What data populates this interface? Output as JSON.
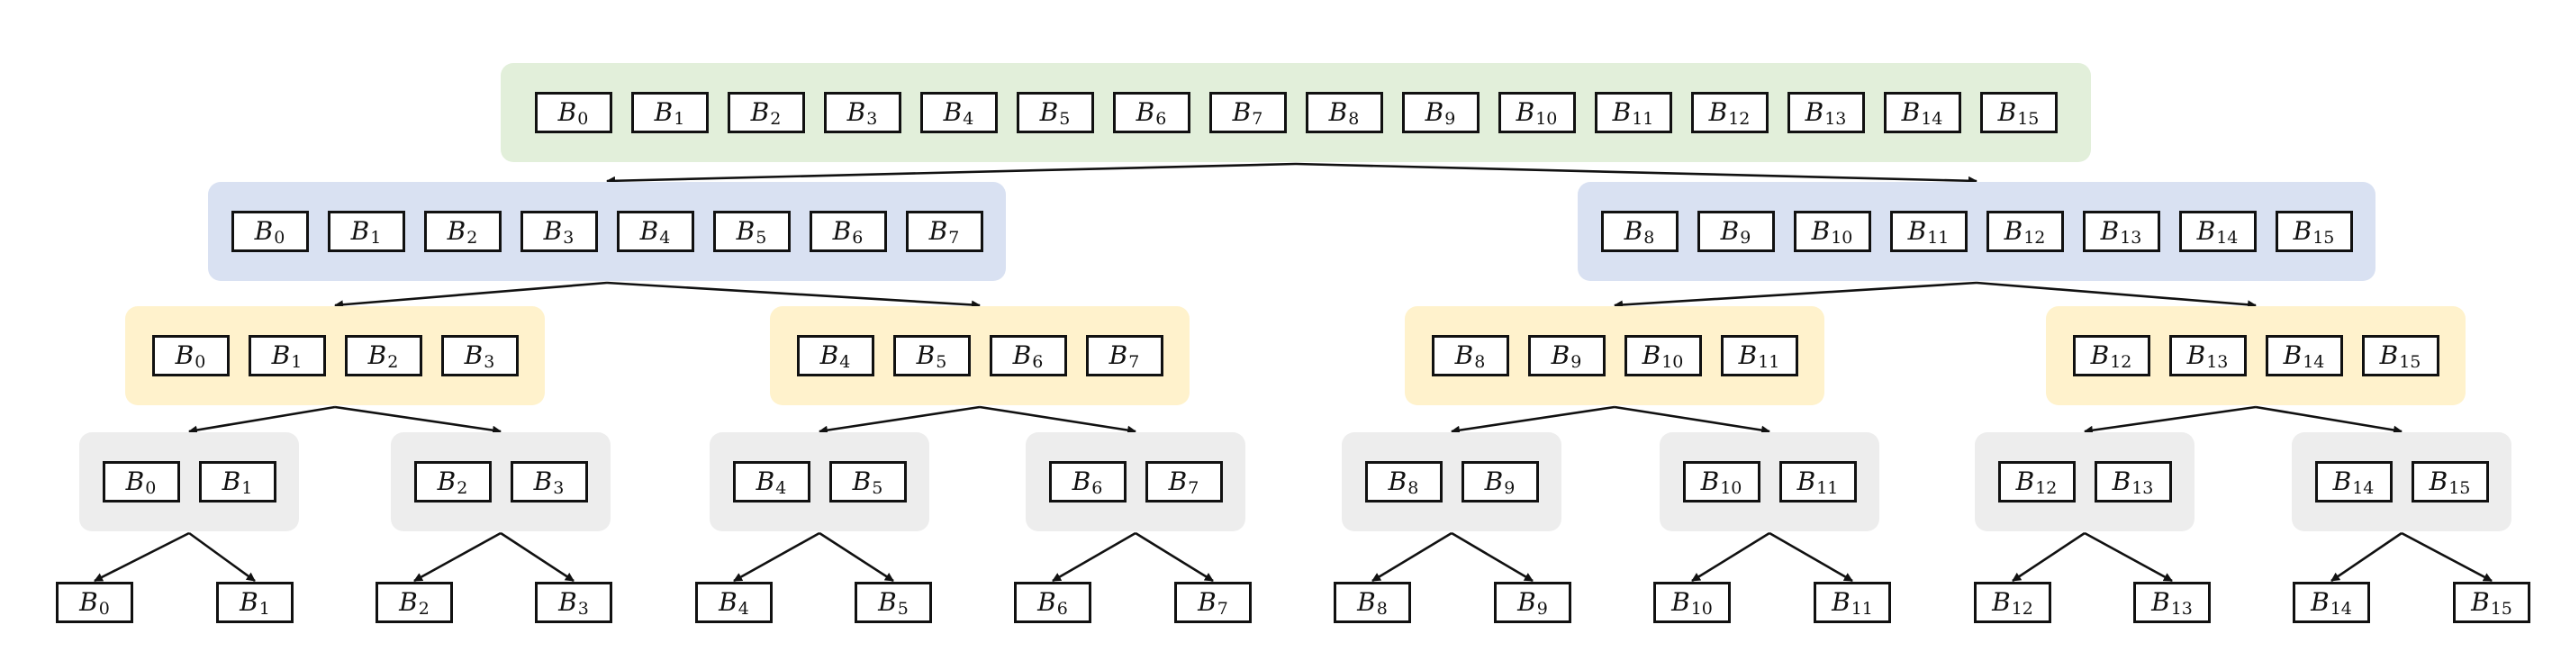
{
  "diagram": {
    "title": "",
    "colors": {
      "level0": "#e2efda",
      "level1": "#d9e1f2",
      "level2": "#fff2cc",
      "level3": "#ededed",
      "stroke": "#111111"
    },
    "levels": [
      {
        "color_key": "level0",
        "groups": [
          {
            "blocks": [
              {
                "base": "B",
                "sub": "0"
              },
              {
                "base": "B",
                "sub": "1"
              },
              {
                "base": "B",
                "sub": "2"
              },
              {
                "base": "B",
                "sub": "3"
              },
              {
                "base": "B",
                "sub": "4"
              },
              {
                "base": "B",
                "sub": "5"
              },
              {
                "base": "B",
                "sub": "6"
              },
              {
                "base": "B",
                "sub": "7"
              },
              {
                "base": "B",
                "sub": "8"
              },
              {
                "base": "B",
                "sub": "9"
              },
              {
                "base": "B",
                "sub": "10"
              },
              {
                "base": "B",
                "sub": "11"
              },
              {
                "base": "B",
                "sub": "12"
              },
              {
                "base": "B",
                "sub": "13"
              },
              {
                "base": "B",
                "sub": "14"
              },
              {
                "base": "B",
                "sub": "15"
              }
            ]
          }
        ]
      },
      {
        "color_key": "level1",
        "groups": [
          {
            "blocks": [
              {
                "base": "B",
                "sub": "0"
              },
              {
                "base": "B",
                "sub": "1"
              },
              {
                "base": "B",
                "sub": "2"
              },
              {
                "base": "B",
                "sub": "3"
              },
              {
                "base": "B",
                "sub": "4"
              },
              {
                "base": "B",
                "sub": "5"
              },
              {
                "base": "B",
                "sub": "6"
              },
              {
                "base": "B",
                "sub": "7"
              }
            ]
          },
          {
            "blocks": [
              {
                "base": "B",
                "sub": "8"
              },
              {
                "base": "B",
                "sub": "9"
              },
              {
                "base": "B",
                "sub": "10"
              },
              {
                "base": "B",
                "sub": "11"
              },
              {
                "base": "B",
                "sub": "12"
              },
              {
                "base": "B",
                "sub": "13"
              },
              {
                "base": "B",
                "sub": "14"
              },
              {
                "base": "B",
                "sub": "15"
              }
            ]
          }
        ]
      },
      {
        "color_key": "level2",
        "groups": [
          {
            "blocks": [
              {
                "base": "B",
                "sub": "0"
              },
              {
                "base": "B",
                "sub": "1"
              },
              {
                "base": "B",
                "sub": "2"
              },
              {
                "base": "B",
                "sub": "3"
              }
            ]
          },
          {
            "blocks": [
              {
                "base": "B",
                "sub": "4"
              },
              {
                "base": "B",
                "sub": "5"
              },
              {
                "base": "B",
                "sub": "6"
              },
              {
                "base": "B",
                "sub": "7"
              }
            ]
          },
          {
            "blocks": [
              {
                "base": "B",
                "sub": "8"
              },
              {
                "base": "B",
                "sub": "9"
              },
              {
                "base": "B",
                "sub": "10"
              },
              {
                "base": "B",
                "sub": "11"
              }
            ]
          },
          {
            "blocks": [
              {
                "base": "B",
                "sub": "12"
              },
              {
                "base": "B",
                "sub": "13"
              },
              {
                "base": "B",
                "sub": "14"
              },
              {
                "base": "B",
                "sub": "15"
              }
            ]
          }
        ]
      },
      {
        "color_key": "level3",
        "groups": [
          {
            "blocks": [
              {
                "base": "B",
                "sub": "0"
              },
              {
                "base": "B",
                "sub": "1"
              }
            ]
          },
          {
            "blocks": [
              {
                "base": "B",
                "sub": "2"
              },
              {
                "base": "B",
                "sub": "3"
              }
            ]
          },
          {
            "blocks": [
              {
                "base": "B",
                "sub": "4"
              },
              {
                "base": "B",
                "sub": "5"
              }
            ]
          },
          {
            "blocks": [
              {
                "base": "B",
                "sub": "6"
              },
              {
                "base": "B",
                "sub": "7"
              }
            ]
          },
          {
            "blocks": [
              {
                "base": "B",
                "sub": "8"
              },
              {
                "base": "B",
                "sub": "9"
              }
            ]
          },
          {
            "blocks": [
              {
                "base": "B",
                "sub": "10"
              },
              {
                "base": "B",
                "sub": "11"
              }
            ]
          },
          {
            "blocks": [
              {
                "base": "B",
                "sub": "12"
              },
              {
                "base": "B",
                "sub": "13"
              }
            ]
          },
          {
            "blocks": [
              {
                "base": "B",
                "sub": "14"
              },
              {
                "base": "B",
                "sub": "15"
              }
            ]
          }
        ]
      },
      {
        "color_key": null,
        "groups": [
          {
            "blocks": [
              {
                "base": "B",
                "sub": "0"
              }
            ]
          },
          {
            "blocks": [
              {
                "base": "B",
                "sub": "1"
              }
            ]
          },
          {
            "blocks": [
              {
                "base": "B",
                "sub": "2"
              }
            ]
          },
          {
            "blocks": [
              {
                "base": "B",
                "sub": "3"
              }
            ]
          },
          {
            "blocks": [
              {
                "base": "B",
                "sub": "4"
              }
            ]
          },
          {
            "blocks": [
              {
                "base": "B",
                "sub": "5"
              }
            ]
          },
          {
            "blocks": [
              {
                "base": "B",
                "sub": "6"
              }
            ]
          },
          {
            "blocks": [
              {
                "base": "B",
                "sub": "7"
              }
            ]
          },
          {
            "blocks": [
              {
                "base": "B",
                "sub": "8"
              }
            ]
          },
          {
            "blocks": [
              {
                "base": "B",
                "sub": "9"
              }
            ]
          },
          {
            "blocks": [
              {
                "base": "B",
                "sub": "10"
              }
            ]
          },
          {
            "blocks": [
              {
                "base": "B",
                "sub": "11"
              }
            ]
          },
          {
            "blocks": [
              {
                "base": "B",
                "sub": "12"
              }
            ]
          },
          {
            "blocks": [
              {
                "base": "B",
                "sub": "13"
              }
            ]
          },
          {
            "blocks": [
              {
                "base": "B",
                "sub": "14"
              }
            ]
          },
          {
            "blocks": [
              {
                "base": "B",
                "sub": "15"
              }
            ]
          }
        ]
      }
    ]
  }
}
